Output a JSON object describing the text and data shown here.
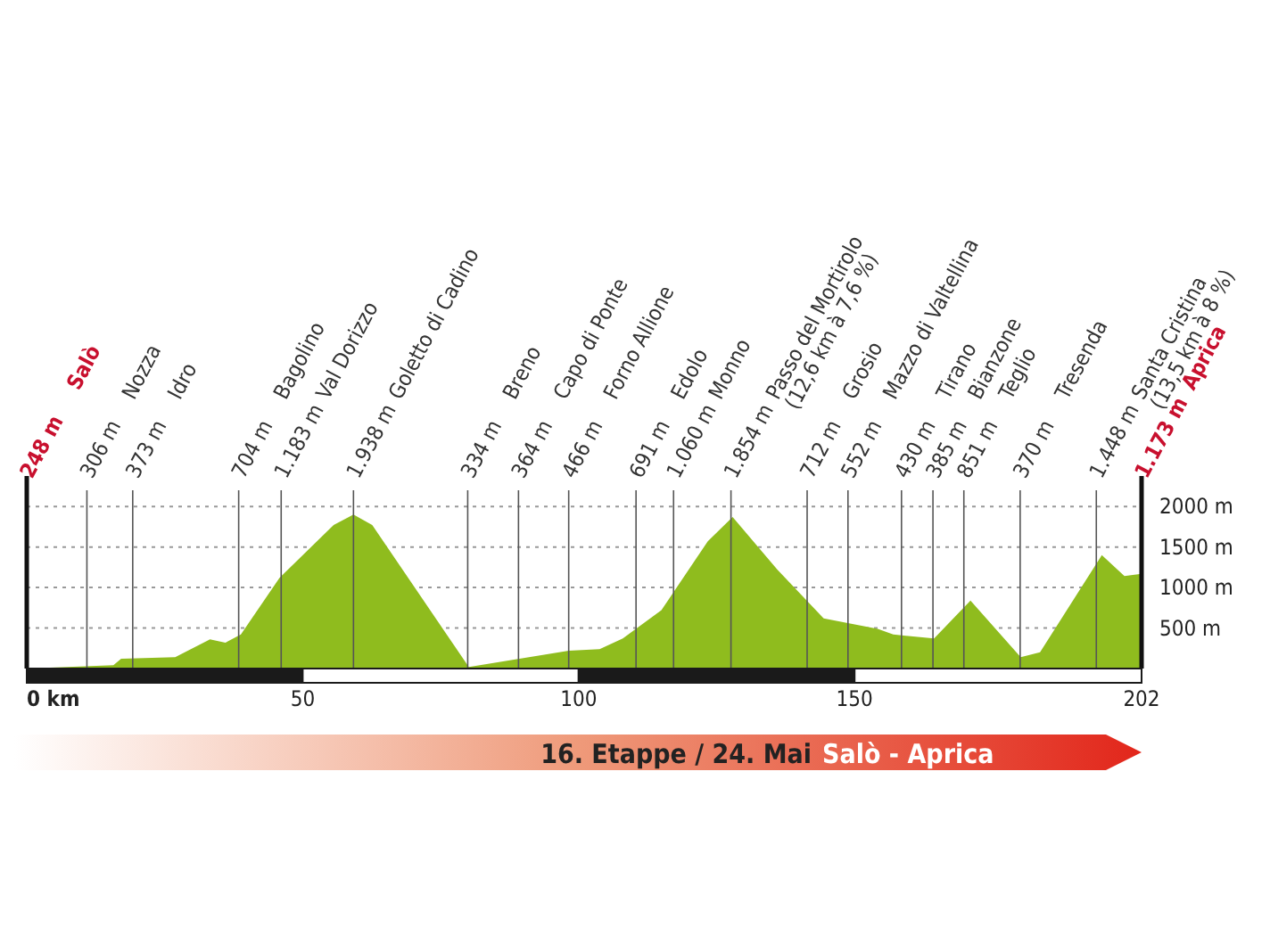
{
  "chart_data": {
    "type": "area",
    "title": "16. Etappe / 24. Mai",
    "subtitle": "Salò - Aprica",
    "x": [
      0,
      15.7,
      17.1,
      26.9,
      33.2,
      36,
      38.8,
      45.8,
      55.6,
      59.2,
      62.6,
      80.1,
      98.2,
      103.8,
      108,
      115,
      123.4,
      127.9,
      136,
      144.4,
      154.2,
      157,
      164.4,
      171,
      180.1,
      183.6,
      194.8,
      198.9,
      202
    ],
    "series": [
      {
        "color": "#8fbc1e",
        "values": [
          0,
          40,
          120,
          140,
          360,
          320,
          420,
          1120,
          1770,
          1900,
          1770,
          20,
          220,
          240,
          370,
          720,
          1570,
          1870,
          1220,
          620,
          490,
          420,
          370,
          840,
          140,
          200,
          1400,
          1140,
          1170
        ]
      }
    ],
    "xlim": [
      0,
      202
    ],
    "xticks": [
      {
        "value": 0,
        "label": "0 km"
      },
      50,
      100,
      150,
      202
    ],
    "ylim": [
      0,
      2200
    ],
    "yticks": [
      {
        "value": 500,
        "label": "500 m"
      },
      {
        "value": 1000,
        "label": "1000 m"
      },
      {
        "value": 1500,
        "label": "1500 m"
      },
      {
        "value": 2000,
        "label": "2000 m"
      }
    ],
    "grid": "y",
    "ref_lines": [
      {
        "axis": "x",
        "value": 0,
        "label": "248 m"
      },
      {
        "axis": "x",
        "value": 10.9,
        "label": "306 m"
      },
      {
        "axis": "x",
        "value": 19.2,
        "label": "373 m"
      },
      {
        "axis": "x",
        "value": 38.4,
        "label": "704 m"
      },
      {
        "axis": "x",
        "value": 46.1,
        "label": "1.183 m"
      },
      {
        "axis": "x",
        "value": 59.2,
        "label": "1.938 m"
      },
      {
        "axis": "x",
        "value": 79.9,
        "label": "334 m"
      },
      {
        "axis": "x",
        "value": 89.1,
        "label": "364 m"
      },
      {
        "axis": "x",
        "value": 98.2,
        "label": "466 m"
      },
      {
        "axis": "x",
        "value": 110.4,
        "label": "691 m"
      },
      {
        "axis": "x",
        "value": 117.2,
        "label": "1.060 m"
      },
      {
        "axis": "x",
        "value": 127.6,
        "label": "1.854 m"
      },
      {
        "axis": "x",
        "value": 141.4,
        "label": "712 m"
      },
      {
        "axis": "x",
        "value": 148.8,
        "label": "552 m"
      },
      {
        "axis": "x",
        "value": 158.5,
        "label": "430 m"
      },
      {
        "axis": "x",
        "value": 164.2,
        "label": "385 m"
      },
      {
        "axis": "x",
        "value": 169.8,
        "label": "851 m"
      },
      {
        "axis": "x",
        "value": 180,
        "label": "370 m"
      },
      {
        "axis": "x",
        "value": 193.8,
        "label": "1.448 m"
      }
    ],
    "annotations": [
      "Salò",
      "Nozza",
      "Idro",
      "Bagolino",
      "Val Dorizzo",
      "Goletto di Cadino",
      "Breno",
      "Capo di Ponte",
      "Forno Allione",
      "Edolo",
      "Monno",
      "Passo del Mortirolo\n(12,6 km à 7,6 %)",
      "Grosio",
      "Mazzo di Valtellina",
      "Tirano",
      "Bianzone",
      "Teglio",
      "Tresenda",
      "Santa Cristina\n(13,5 km à 8 %)",
      "1.173 m",
      "Aprica"
    ]
  }
}
